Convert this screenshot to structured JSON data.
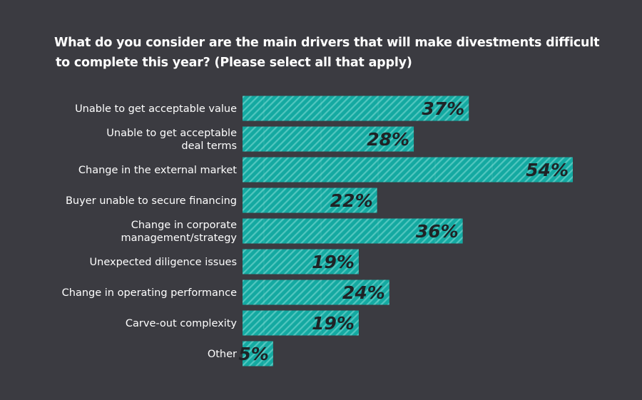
{
  "chart_data": {
    "type": "bar",
    "orientation": "horizontal",
    "title": "What do you consider are the main drivers that will make divestments difficult to complete this year? (Please select all that apply)",
    "title_lines": [
      "What do you consider are the main drivers that will make divestments difficult",
      "to complete this year? (Please select all that apply)"
    ],
    "categories": [
      [
        "Unable to get acceptable value"
      ],
      [
        "Unable to get acceptable",
        "deal terms"
      ],
      [
        "Change in the external market"
      ],
      [
        "Buyer unable to secure financing"
      ],
      [
        "Change in corporate",
        "management/strategy"
      ],
      [
        "Unexpected diligence issues"
      ],
      [
        "Change in operating performance"
      ],
      [
        "Carve-out complexity"
      ],
      [
        "Other"
      ]
    ],
    "values": [
      37,
      28,
      54,
      22,
      36,
      19,
      24,
      19,
      5
    ],
    "labels": [
      "37%",
      "28%",
      "54%",
      "22%",
      "36%",
      "19%",
      "24%",
      "19%",
      "5%"
    ],
    "unit": "%",
    "xlim": [
      0,
      54
    ],
    "xlabel": "",
    "ylabel": "",
    "grid": false,
    "legend": "none",
    "colors": {
      "bar": "#14a9a1",
      "stripe": "#52c6bf",
      "background": "#3b3b41",
      "value_text": "#1f2326"
    }
  }
}
